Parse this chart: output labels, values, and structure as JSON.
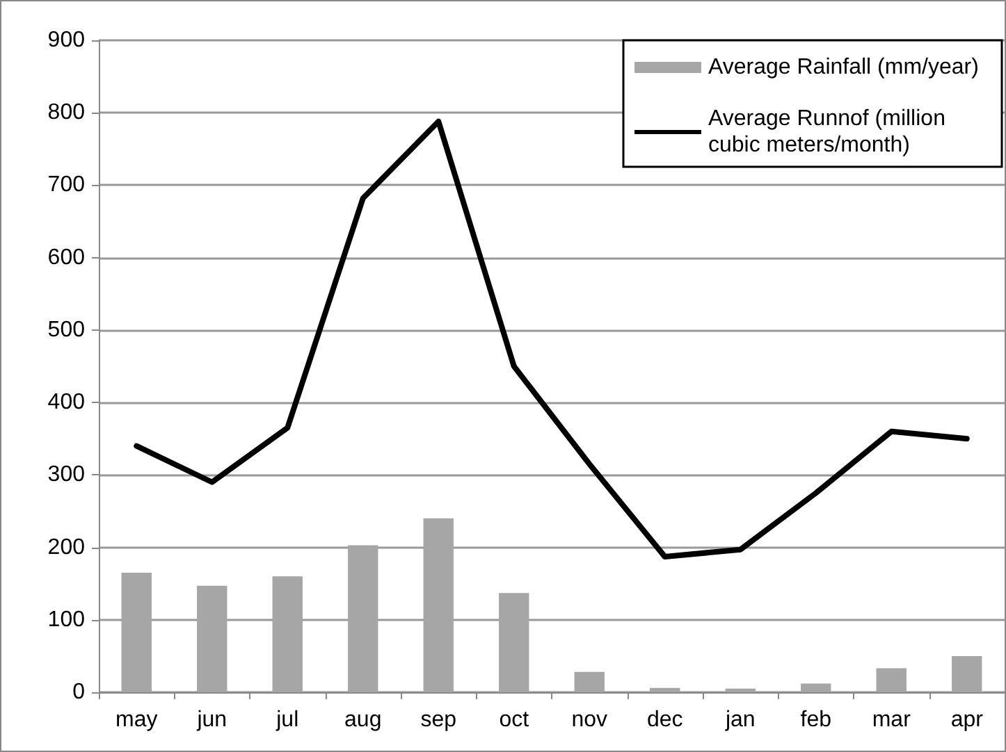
{
  "chart_data": {
    "type": "bar",
    "categories": [
      "may",
      "jun",
      "jul",
      "aug",
      "sep",
      "oct",
      "nov",
      "dec",
      "jan",
      "feb",
      "mar",
      "apr"
    ],
    "series": [
      {
        "name": "Average Rainfall (mm/year)",
        "color": "#a6a6a6",
        "values": [
          165,
          147,
          160,
          203,
          240,
          137,
          28,
          6,
          5,
          12,
          33,
          50
        ]
      },
      {
        "name": "Average Runnof (million cubic meters/month)",
        "type": "line",
        "color": "#000000",
        "values": [
          340,
          290,
          365,
          682,
          788,
          450,
          315,
          187,
          197,
          275,
          360,
          350
        ]
      }
    ],
    "ylim": [
      0,
      900
    ],
    "yticks": [
      0,
      100,
      200,
      300,
      400,
      500,
      600,
      700,
      800,
      900
    ],
    "grid": "y",
    "legend": "top right",
    "marker": "none",
    "line_style": "solid"
  }
}
